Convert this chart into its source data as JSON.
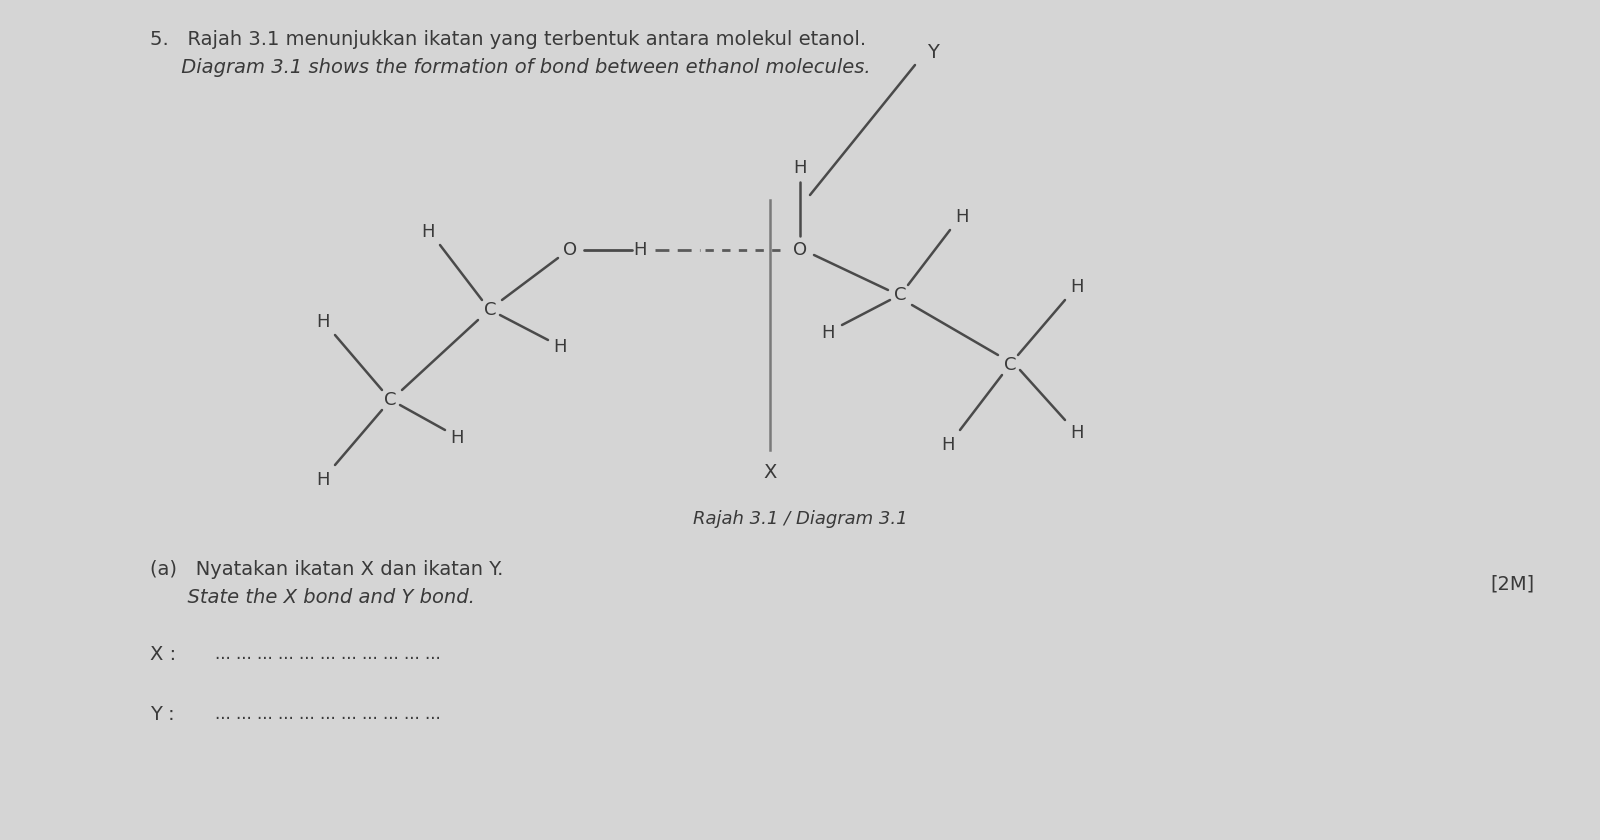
{
  "bg_color": "#d5d5d5",
  "title_line1": "5.   Rajah 3.1 menunjukkan ikatan yang terbentuk antara molekul etanol.",
  "title_line2": "     Diagram 3.1 shows the formation of bond between ethanol molecules.",
  "caption": "Rajah 3.1 / Diagram 3.1",
  "question_a_line1": "(a)   Nyatakan ikatan X dan ikatan Y.",
  "question_a_line2": "      State the X bond and Y bond.",
  "marks": "[2M]",
  "x_label": "X :",
  "y_label": "Y :",
  "dots_x": "... ... ... ... ... ... ... ... ... ... ...",
  "dots_y": "... ... ... ... ... ... ... ... ... ... ...",
  "text_color": "#3a3a3a",
  "bond_color": "#4a4a4a",
  "atom_color": "#3a3a3a",
  "hbond_color": "#5a5a5a",
  "separator_color": "#7a7a7a"
}
